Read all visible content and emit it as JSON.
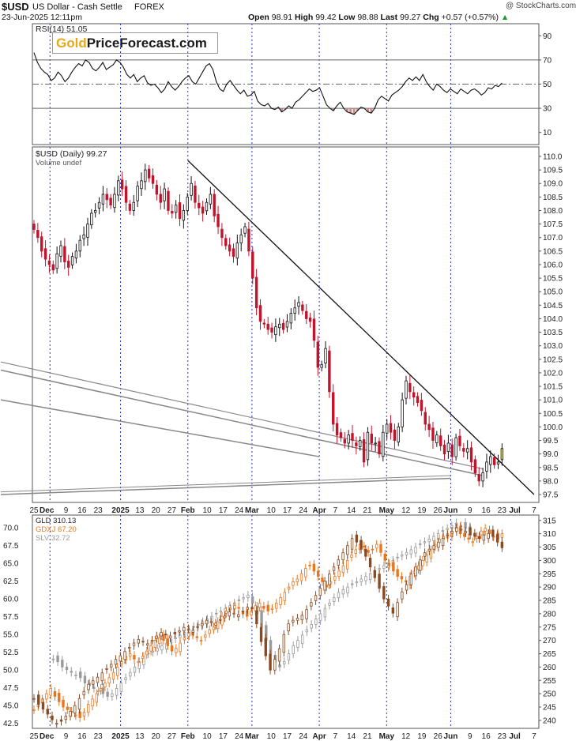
{
  "header": {
    "symbol": "$USD",
    "title": "US Dollar - Cash Settle",
    "exchange": "FOREX",
    "datetime": "23-Jun-2025 12:11pm",
    "credit": "@ StockCharts.com",
    "quote": {
      "open_label": "Open",
      "open": "98.91",
      "high_label": "High",
      "high": "99.42",
      "low_label": "Low",
      "low": "98.88",
      "last_label": "Last",
      "last": "99.27",
      "chg_label": "Chg",
      "chg": "+0.57 (+0.57%)"
    }
  },
  "watermark": {
    "part1": "Gold",
    "part2": "PriceForecast.com"
  },
  "colors": {
    "up": "#111111",
    "down": "#c0142c",
    "guide": "#2233cc",
    "orange": "#e8761f",
    "brown": "#8a4a21",
    "grey": "#9a9a9a"
  },
  "chart_data": [
    {
      "type": "line",
      "panel": "rsi",
      "legend": "RSI(14) 51.05",
      "ylim": [
        0,
        100
      ],
      "yticks": [
        10,
        30,
        50,
        70,
        90
      ],
      "reference_lines": [
        30,
        50,
        70
      ],
      "values": [
        76,
        68,
        63,
        60,
        58,
        53,
        55,
        60,
        57,
        52,
        55,
        60,
        64,
        67,
        65,
        70,
        68,
        63,
        61,
        64,
        68,
        62,
        64,
        66,
        70,
        68,
        64,
        58,
        55,
        58,
        52,
        55,
        57,
        51,
        49,
        50,
        47,
        43,
        46,
        52,
        48,
        45,
        48,
        52,
        55,
        57,
        52,
        50,
        55,
        60,
        65,
        67,
        62,
        52,
        46,
        44,
        50,
        53,
        49,
        45,
        42,
        45,
        40,
        41,
        44,
        36,
        33,
        32,
        34,
        30,
        29,
        31,
        27,
        29,
        32,
        30,
        35,
        37,
        40,
        43,
        46,
        44,
        45,
        47,
        40,
        33,
        30,
        28,
        32,
        35,
        30,
        27,
        26,
        25,
        28,
        31,
        30,
        27,
        26,
        30,
        37,
        40,
        38,
        36,
        41,
        43,
        45,
        48,
        52,
        55,
        53,
        56,
        53,
        58,
        52,
        48,
        45,
        50,
        48,
        45,
        43,
        46,
        44,
        42,
        46,
        44,
        42,
        45,
        46,
        44,
        41,
        43,
        47,
        46,
        49,
        48,
        51
      ]
    },
    {
      "type": "candlestick",
      "panel": "usd",
      "legend": "$USD (Daily) 99.27",
      "legend2": "Volume undef",
      "ylim": [
        97.5,
        110.0
      ],
      "yticks": [
        97.5,
        98.0,
        98.5,
        99.0,
        99.5,
        100.0,
        100.5,
        101.0,
        101.5,
        102.0,
        102.5,
        103.0,
        103.5,
        104.0,
        104.5,
        105.0,
        105.5,
        106.0,
        106.5,
        107.0,
        107.5,
        108.0,
        108.5,
        109.0,
        109.5,
        110.0
      ],
      "closes": [
        107.3,
        107.0,
        106.5,
        106.2,
        106.0,
        105.8,
        106.4,
        106.7,
        106.1,
        105.9,
        106.3,
        106.5,
        106.9,
        107.1,
        107.5,
        107.9,
        108.0,
        108.3,
        108.6,
        108.4,
        108.2,
        108.6,
        109.1,
        108.8,
        108.3,
        108.0,
        108.3,
        108.9,
        109.1,
        109.5,
        109.2,
        109.0,
        108.6,
        108.3,
        108.8,
        108.0,
        107.9,
        108.2,
        107.7,
        108.0,
        108.5,
        109.0,
        108.3,
        108.1,
        107.9,
        108.3,
        108.6,
        107.8,
        107.4,
        107.0,
        106.7,
        106.5,
        106.3,
        106.8,
        107.1,
        107.4,
        106.5,
        105.5,
        104.4,
        103.9,
        103.8,
        103.6,
        103.5,
        103.7,
        103.8,
        103.6,
        103.9,
        104.2,
        104.4,
        104.6,
        104.3,
        104.0,
        103.9,
        103.2,
        102.2,
        102.3,
        102.9,
        101.3,
        100.1,
        99.7,
        99.6,
        99.4,
        99.7,
        99.5,
        99.3,
        99.5,
        98.7,
        99.8,
        99.4,
        99.4,
        99.0,
        99.8,
        100.1,
        99.8,
        99.5,
        100.0,
        101.0,
        101.7,
        101.3,
        101.1,
        100.9,
        100.6,
        100.1,
        99.9,
        99.5,
        99.7,
        99.3,
        99.0,
        99.4,
        98.9,
        99.6,
        99.3,
        99.1,
        99.2,
        98.7,
        98.3,
        98.0,
        98.3,
        98.7,
        98.9,
        98.6,
        98.7,
        99.2
      ]
    },
    {
      "type": "candlestick",
      "panel": "metals",
      "series": [
        {
          "name": "GLD 310.13",
          "axis": "right",
          "color": "#e8761f",
          "ylim": [
            237,
            317
          ],
          "closes": [
            244,
            246,
            248,
            250,
            252,
            249,
            247,
            245,
            244,
            243,
            242,
            241,
            243,
            246,
            248,
            250,
            252,
            254,
            256,
            258,
            260,
            262,
            264,
            265,
            263,
            262,
            264,
            266,
            268,
            270,
            271,
            270,
            268,
            266,
            267,
            269,
            271,
            273,
            272,
            271,
            270,
            272,
            274,
            275,
            277,
            279,
            281,
            282,
            283,
            282,
            280,
            279,
            281,
            283,
            284,
            282,
            281,
            282,
            284,
            286,
            288,
            290,
            292,
            293,
            295,
            297,
            298,
            296,
            294,
            292,
            290,
            292,
            294,
            296,
            298,
            300,
            302,
            304,
            306,
            305,
            303,
            304,
            306,
            303,
            300,
            298,
            296,
            294,
            293,
            292,
            294,
            296,
            298,
            300,
            302,
            304,
            306,
            308,
            309,
            310,
            311,
            312,
            310,
            309,
            308,
            307,
            309,
            311,
            312,
            310,
            309,
            308,
            310
          ]
        },
        {
          "name": "GDXJ 67.20",
          "axis": "left",
          "color": "#8a4a21",
          "closes": [
            46.0,
            45.2,
            44.5,
            43.8,
            43.0,
            42.5,
            42.8,
            43.5,
            44.2,
            45.0,
            46.0,
            47.0,
            48.0,
            48.5,
            49.0,
            49.6,
            50.2,
            50.8,
            51.5,
            52.0,
            52.6,
            53.2,
            53.8,
            54.3,
            54.0,
            53.7,
            54.2,
            54.8,
            55.3,
            55.0,
            54.8,
            55.1,
            55.5,
            56.0,
            55.8,
            55.6,
            56.0,
            56.5,
            57.0,
            56.8,
            56.6,
            57.1,
            57.6,
            58.2,
            58.0,
            57.8,
            58.3,
            58.8,
            58.6,
            56.5,
            54.0,
            52.0,
            50.0,
            51.5,
            53.0,
            55.0,
            56.5,
            57.0,
            57.3,
            57.7,
            58.5,
            59.5,
            60.5,
            61.5,
            62.5,
            63.5,
            64.5,
            65.5,
            66.5,
            67.5,
            68.5,
            68.0,
            67.0,
            66.0,
            64.5,
            63.0,
            61.5,
            60.0,
            59.0,
            58.0,
            59.5,
            61.0,
            62.0,
            63.5,
            64.5,
            65.5,
            66.5,
            67.0,
            67.5,
            68.0,
            68.5,
            69.0,
            69.5,
            70.0,
            69.8,
            69.5,
            69.0,
            68.8,
            68.5,
            69.0,
            69.2,
            68.8,
            68.0,
            67.2
          ]
        },
        {
          "name": "SLV 32.72",
          "axis": "right",
          "color": "#9a9a9a",
          "closes": [
            263,
            262,
            260,
            259,
            258,
            257,
            256,
            254,
            253,
            252,
            251,
            250,
            249,
            250,
            252,
            254,
            256,
            258,
            260,
            262,
            264,
            265,
            266,
            267,
            268,
            269,
            270,
            271,
            272,
            273,
            274,
            275,
            276,
            277,
            278,
            279,
            280,
            281,
            282,
            283,
            284,
            285,
            286,
            287,
            284,
            280,
            275,
            270,
            265,
            262,
            260,
            262,
            265,
            268,
            270,
            272,
            274,
            276,
            278,
            280,
            282,
            284,
            286,
            288,
            289,
            290,
            291,
            292,
            293,
            294,
            295,
            296,
            297,
            298,
            299,
            300,
            301,
            302,
            303,
            304,
            305,
            306,
            307,
            308,
            309,
            310,
            311,
            312,
            313,
            314,
            313,
            312,
            311
          ]
        }
      ],
      "yticks_left": [
        42.5,
        45.0,
        47.5,
        50.0,
        52.5,
        55.0,
        57.5,
        60.0,
        62.5,
        65.0,
        67.5,
        70.0
      ],
      "yticks_right": [
        240,
        245,
        250,
        255,
        260,
        265,
        270,
        275,
        280,
        285,
        290,
        295,
        300,
        305,
        310,
        315
      ],
      "ylim_left": [
        41.8,
        71.8
      ]
    }
  ],
  "xaxis": {
    "labels": [
      {
        "t": "25",
        "d": 0
      },
      {
        "t": "Dec",
        "d": 4
      },
      {
        "t": "9",
        "d": 10
      },
      {
        "t": "16",
        "d": 15
      },
      {
        "t": "23",
        "d": 20
      },
      {
        "t": "2025",
        "d": 27
      },
      {
        "t": "13",
        "d": 33
      },
      {
        "t": "20",
        "d": 38
      },
      {
        "t": "27",
        "d": 43
      },
      {
        "t": "Feb",
        "d": 48
      },
      {
        "t": "10",
        "d": 54
      },
      {
        "t": "17",
        "d": 59
      },
      {
        "t": "24",
        "d": 64
      },
      {
        "t": "Mar",
        "d": 68
      },
      {
        "t": "10",
        "d": 74
      },
      {
        "t": "17",
        "d": 79
      },
      {
        "t": "24",
        "d": 84
      },
      {
        "t": "Apr",
        "d": 89
      },
      {
        "t": "7",
        "d": 94
      },
      {
        "t": "14",
        "d": 99
      },
      {
        "t": "21",
        "d": 104
      },
      {
        "t": "May",
        "d": 110
      },
      {
        "t": "12",
        "d": 116
      },
      {
        "t": "19",
        "d": 121
      },
      {
        "t": "26",
        "d": 126
      },
      {
        "t": "Jun",
        "d": 130
      },
      {
        "t": "9",
        "d": 136
      },
      {
        "t": "16",
        "d": 141
      },
      {
        "t": "23",
        "d": 146
      },
      {
        "t": "Jul",
        "d": 150
      },
      {
        "t": "7",
        "d": 156
      }
    ],
    "guides": [
      5,
      27,
      48,
      68,
      89,
      110,
      130
    ]
  }
}
